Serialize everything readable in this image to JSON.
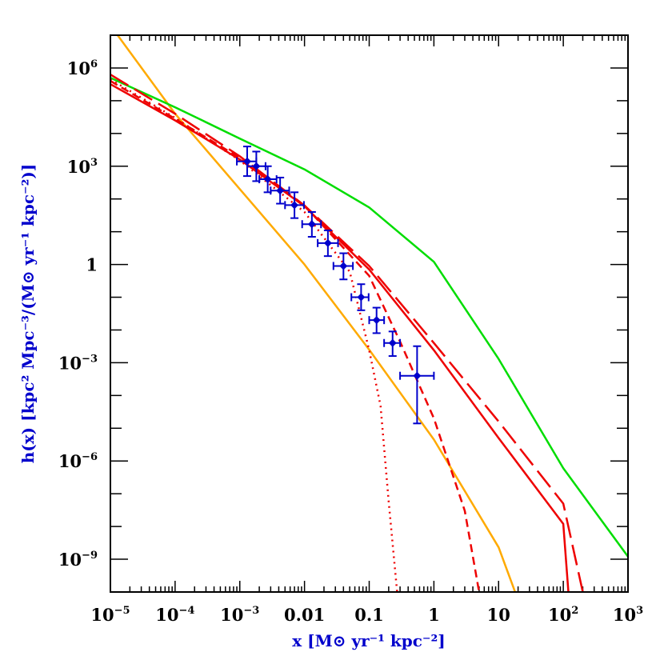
{
  "chart_data": {
    "type": "line",
    "title": "",
    "xlabel": "x [M⊙ yr⁻¹ kpc⁻²]",
    "ylabel": "h(x) [kpc² Mpc⁻³/(M⊙ yr⁻¹ kpc⁻²)]",
    "x_scale": "log",
    "y_scale": "log",
    "xlim": [
      1e-05,
      1000
    ],
    "ylim": [
      1e-10,
      10000000.0
    ],
    "grid": false,
    "legend": "none",
    "x_tick_labels": [
      {
        "value": 1e-05,
        "base": "10",
        "exp": "−5"
      },
      {
        "value": 0.0001,
        "base": "10",
        "exp": "−4"
      },
      {
        "value": 0.001,
        "base": "10",
        "exp": "−3"
      },
      {
        "value": 0.01,
        "base": "0.01",
        "exp": ""
      },
      {
        "value": 0.1,
        "base": "0.1",
        "exp": ""
      },
      {
        "value": 1,
        "base": "1",
        "exp": ""
      },
      {
        "value": 10,
        "base": "10",
        "exp": ""
      },
      {
        "value": 100,
        "base": "10",
        "exp": "2"
      },
      {
        "value": 1000,
        "base": "10",
        "exp": "3"
      }
    ],
    "y_tick_labels": [
      {
        "value": 1e-09,
        "base": "10",
        "exp": "−9"
      },
      {
        "value": 1e-06,
        "base": "10",
        "exp": "−6"
      },
      {
        "value": 0.001,
        "base": "10",
        "exp": "−3"
      },
      {
        "value": 1,
        "base": "1",
        "exp": ""
      },
      {
        "value": 1000,
        "base": "10",
        "exp": "3"
      },
      {
        "value": 1000000,
        "base": "10",
        "exp": "6"
      }
    ],
    "series": [
      {
        "color": "#ffaa00",
        "style": "solid",
        "x": [
          1e-05,
          0.0001,
          0.001,
          0.01,
          0.1,
          1,
          10,
          18
        ],
        "y": [
          20000000.0,
          40000.0,
          200,
          1.0,
          0.0025,
          4.5e-06,
          2.3e-09,
          1e-10
        ]
      },
      {
        "color": "#00dd00",
        "style": "solid",
        "x": [
          1e-05,
          0.0001,
          0.001,
          0.01,
          0.1,
          1,
          10,
          100,
          1000
        ],
        "y": [
          500000.0,
          63000.0,
          7000.0,
          800,
          55,
          1.2,
          0.0013,
          6e-07,
          1.2e-09
        ]
      },
      {
        "color": "#ee0000",
        "style": "solid",
        "x": [
          1e-05,
          0.0001,
          0.001,
          0.01,
          0.1,
          1,
          10,
          100,
          120
        ],
        "y": [
          320000.0,
          25000.0,
          1600.0,
          60,
          0.7,
          0.0024,
          5e-06,
          1.2e-08,
          1e-10
        ]
      },
      {
        "color": "#ee0000",
        "style": "dashed",
        "x": [
          1e-05,
          0.0001,
          0.001,
          0.01,
          0.1,
          1,
          10,
          100,
          200
        ],
        "y": [
          630000.0,
          40000.0,
          2000.0,
          63,
          0.9,
          0.004,
          1.6e-05,
          5e-08,
          1e-10
        ]
      },
      {
        "color": "#ee0000",
        "style": "short-dashed",
        "x": [
          1e-05,
          0.0001,
          0.001,
          0.01,
          0.1,
          0.3,
          1,
          3,
          5
        ],
        "y": [
          400000.0,
          28000.0,
          1800.0,
          63,
          0.45,
          0.0044,
          2e-05,
          3e-08,
          1e-10
        ]
      },
      {
        "color": "#ee0000",
        "style": "dotted",
        "x": [
          1e-05,
          0.0001,
          0.001,
          0.01,
          0.05,
          0.1,
          0.15,
          0.2,
          0.27
        ],
        "y": [
          450000.0,
          30000.0,
          1500.0,
          40,
          0.6,
          0.0024,
          4.8e-05,
          6e-08,
          1e-10
        ]
      }
    ],
    "data_points": {
      "color": "#0000cc",
      "points": [
        {
          "x": 0.0013,
          "y": 1400,
          "xerr": [
            0.0009,
            0.0018
          ],
          "yerr": [
            500,
            4000
          ]
        },
        {
          "x": 0.0018,
          "y": 1000,
          "xerr": [
            0.0013,
            0.0025
          ],
          "yerr": [
            350,
            2800
          ]
        },
        {
          "x": 0.0027,
          "y": 400,
          "xerr": [
            0.002,
            0.0037
          ],
          "yerr": [
            160,
            1000
          ]
        },
        {
          "x": 0.0042,
          "y": 180,
          "xerr": [
            0.003,
            0.0058
          ],
          "yerr": [
            72,
            450
          ]
        },
        {
          "x": 0.007,
          "y": 65,
          "xerr": [
            0.005,
            0.0098
          ],
          "yerr": [
            26,
            160
          ]
        },
        {
          "x": 0.013,
          "y": 17,
          "xerr": [
            0.0092,
            0.018
          ],
          "yerr": [
            7,
            40
          ]
        },
        {
          "x": 0.023,
          "y": 4.5,
          "xerr": [
            0.016,
            0.033
          ],
          "yerr": [
            1.8,
            11
          ]
        },
        {
          "x": 0.04,
          "y": 0.9,
          "xerr": [
            0.028,
            0.056
          ],
          "yerr": [
            0.35,
            2.2
          ]
        },
        {
          "x": 0.075,
          "y": 0.1,
          "xerr": [
            0.053,
            0.098
          ],
          "yerr": [
            0.04,
            0.25
          ]
        },
        {
          "x": 0.13,
          "y": 0.02,
          "xerr": [
            0.1,
            0.17
          ],
          "yerr": [
            0.008,
            0.048
          ]
        },
        {
          "x": 0.23,
          "y": 0.004,
          "xerr": [
            0.17,
            0.3
          ],
          "yerr": [
            0.0016,
            0.009
          ]
        },
        {
          "x": 0.55,
          "y": 0.0004,
          "xerr": [
            0.3,
            1.0
          ],
          "yerr": [
            1.4e-05,
            0.0032
          ]
        }
      ]
    }
  }
}
